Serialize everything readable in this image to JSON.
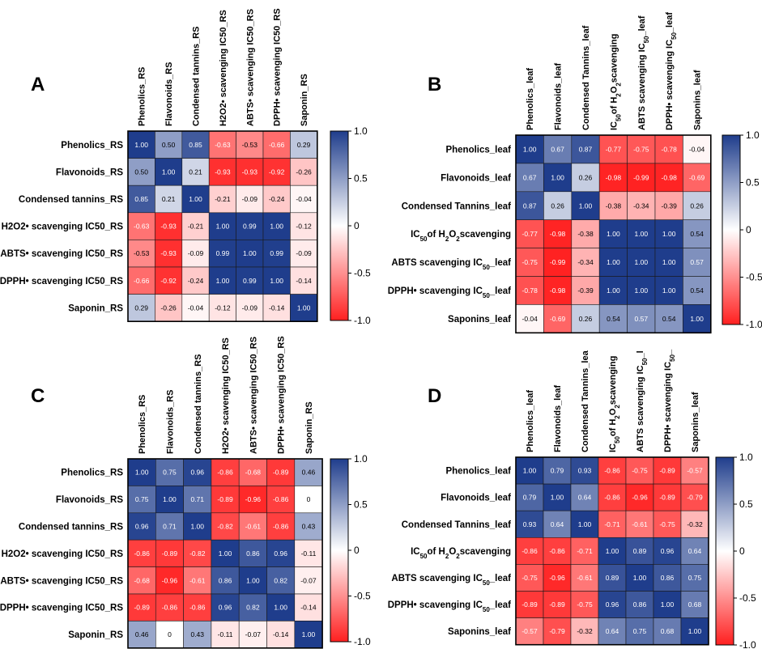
{
  "chart_data": [
    {
      "panel": "A",
      "type": "heatmap",
      "rows": [
        "Phenolics_RS",
        "Flavonoids_RS",
        "Condensed tannins_RS",
        "H2O2• scavenging IC50_RS",
        "ABTS• scavenging IC50_RS",
        "DPPH• scavenging IC50_RS",
        "Saponin_RS"
      ],
      "columns": [
        "Phenolics_RS",
        "Flavonoids_RS",
        "Condensed tannins_RS",
        "H2O2• scavenging IC50_RS",
        "ABTS• scavenging IC50_RS",
        "DPPH• scavenging IC50_RS",
        "Saponin_RS"
      ],
      "values": [
        [
          1.0,
          0.5,
          0.85,
          -0.63,
          -0.53,
          -0.66,
          0.29
        ],
        [
          0.5,
          1.0,
          0.21,
          -0.93,
          -0.93,
          -0.92,
          -0.26
        ],
        [
          0.85,
          0.21,
          1.0,
          -0.21,
          -0.09,
          -0.24,
          -0.04
        ],
        [
          -0.63,
          -0.93,
          -0.21,
          1.0,
          0.99,
          1.0,
          -0.12
        ],
        [
          -0.53,
          -0.93,
          -0.09,
          0.99,
          1.0,
          0.99,
          -0.09
        ],
        [
          -0.66,
          -0.92,
          -0.24,
          1.0,
          0.99,
          1.0,
          -0.14
        ],
        [
          0.29,
          -0.26,
          -0.04,
          -0.12,
          -0.09,
          -0.14,
          1.0
        ]
      ],
      "labels": [
        [
          "1.00",
          "0.50",
          "0.85",
          "-0.63",
          "-0.53",
          "-0.66",
          "0.29"
        ],
        [
          "0.50",
          "1.00",
          "0.21",
          "-0.93",
          "-0.93",
          "-0.92",
          "-0.26"
        ],
        [
          "0.85",
          "0.21",
          "1.00",
          "-0.21",
          "-0.09",
          "-0.24",
          "-0.04"
        ],
        [
          "-0.63",
          "-0.93",
          "-0.21",
          "1.00",
          "0.99",
          "1.00",
          "-0.12"
        ],
        [
          "-0.53",
          "-0.93",
          "-0.09",
          "0.99",
          "1.00",
          "0.99",
          "-0.09"
        ],
        [
          "-0.66",
          "-0.92",
          "-0.24",
          "1.00",
          "0.99",
          "1.00",
          "-0.14"
        ],
        [
          "0.29",
          "-0.26",
          "-0.04",
          "-0.12",
          "-0.09",
          "-0.14",
          "1.00"
        ]
      ],
      "colorbar": {
        "range": [
          -1.0,
          1.0
        ],
        "ticks": [
          "1.0",
          "0.5",
          "0",
          "-0.5",
          "-1.0"
        ]
      }
    },
    {
      "panel": "B",
      "type": "heatmap",
      "rows": [
        "Phenolics_leaf",
        "Flavonoids_leaf",
        "Condensed Tannins_leaf",
        "IC50of H2O2scavenging",
        "ABTS scavenging IC50_leaf",
        "DPPH• scavenging IC50_leaf",
        "Saponins_leaf"
      ],
      "columns": [
        "Phenolics_leaf",
        "Flavonoids_leaf",
        "Condensed Tannins_leaf",
        "IC50of H2O2scavenging",
        "ABTS scavenging IC50_leaf",
        "DPPH• scavenging IC50_leaf",
        "Saponins_leaf"
      ],
      "values": [
        [
          1.0,
          0.67,
          0.87,
          -0.77,
          -0.75,
          -0.78,
          -0.04
        ],
        [
          0.67,
          1.0,
          0.26,
          -0.98,
          -0.99,
          -0.98,
          -0.69
        ],
        [
          0.87,
          0.26,
          1.0,
          -0.38,
          -0.34,
          -0.39,
          0.26
        ],
        [
          -0.77,
          -0.98,
          -0.38,
          1.0,
          1.0,
          1.0,
          0.54
        ],
        [
          -0.75,
          -0.99,
          -0.34,
          1.0,
          1.0,
          1.0,
          0.57
        ],
        [
          -0.78,
          -0.98,
          -0.39,
          1.0,
          1.0,
          1.0,
          0.54
        ],
        [
          -0.04,
          -0.69,
          0.26,
          0.54,
          0.57,
          0.54,
          1.0
        ]
      ],
      "labels": [
        [
          "1.00",
          "0.67",
          "0.87",
          "-0.77",
          "-0.75",
          "-0.78",
          "-0.04"
        ],
        [
          "0.67",
          "1.00",
          "0.26",
          "-0.98",
          "-0.99",
          "-0.98",
          "-0.69"
        ],
        [
          "0.87",
          "0.26",
          "1.00",
          "-0.38",
          "-0.34",
          "-0.39",
          "0.26"
        ],
        [
          "-0.77",
          "-0.98",
          "-0.38",
          "1.00",
          "1.00",
          "1.00",
          "0.54"
        ],
        [
          "-0.75",
          "-0.99",
          "-0.34",
          "1.00",
          "1.00",
          "1.00",
          "0.57"
        ],
        [
          "-0.78",
          "-0.98",
          "-0.39",
          "1.00",
          "1.00",
          "1.00",
          "0.54"
        ],
        [
          "-0.04",
          "-0.69",
          "0.26",
          "0.54",
          "0.57",
          "0.54",
          "1.00"
        ]
      ],
      "colorbar": {
        "range": [
          -1.0,
          1.0
        ],
        "ticks": [
          "1.0",
          "0.5",
          "0",
          "-0.5",
          "-1.0"
        ]
      }
    },
    {
      "panel": "C",
      "type": "heatmap",
      "rows": [
        "Phenolics_RS",
        "Flavonoids_RS",
        "Condensed tannins_RS",
        "H2O2• scavenging IC50_RS",
        "ABTS• scavenging IC50_RS",
        "DPPH• scavenging IC50_RS",
        "Saponin_RS"
      ],
      "columns": [
        "Phenolics_RS",
        "Flavonoids_RS",
        "Condensed tannins_RS",
        "H2O2• scavenging IC50_RS",
        "ABTS• scavenging IC50_RS",
        "DPPH• scavenging IC50_RS",
        "Saponin_RS"
      ],
      "values": [
        [
          1.0,
          0.75,
          0.96,
          -0.86,
          -0.68,
          -0.89,
          0.46
        ],
        [
          0.75,
          1.0,
          0.71,
          -0.89,
          -0.96,
          -0.86,
          0
        ],
        [
          0.96,
          0.71,
          1.0,
          -0.82,
          -0.61,
          -0.86,
          0.43
        ],
        [
          -0.86,
          -0.89,
          -0.82,
          1.0,
          0.86,
          0.96,
          -0.11
        ],
        [
          -0.68,
          -0.96,
          -0.61,
          0.86,
          1.0,
          0.82,
          -0.07
        ],
        [
          -0.89,
          -0.86,
          -0.86,
          0.96,
          0.82,
          1.0,
          -0.14
        ],
        [
          0.46,
          0,
          0.43,
          -0.11,
          -0.07,
          -0.14,
          1.0
        ]
      ],
      "labels": [
        [
          "1.00",
          "0.75",
          "0.96",
          "-0.86",
          "-0.68",
          "-0.89",
          "0.46"
        ],
        [
          "0.75",
          "1.00",
          "0.71",
          "-0.89",
          "-0.96",
          "-0.86",
          "0"
        ],
        [
          "0.96",
          "0.71",
          "1.00",
          "-0.82",
          "-0.61",
          "-0.86",
          "0.43"
        ],
        [
          "-0.86",
          "-0.89",
          "-0.82",
          "1.00",
          "0.86",
          "0.96",
          "-0.11"
        ],
        [
          "-0.68",
          "-0.96",
          "-0.61",
          "0.86",
          "1.00",
          "0.82",
          "-0.07"
        ],
        [
          "-0.89",
          "-0.86",
          "-0.86",
          "0.96",
          "0.82",
          "1.00",
          "-0.14"
        ],
        [
          "0.46",
          "0",
          "0.43",
          "-0.11",
          "-0.07",
          "-0.14",
          "1.00"
        ]
      ],
      "colorbar": {
        "range": [
          -1.0,
          1.0
        ],
        "ticks": [
          "1.0",
          "0.5",
          "0",
          "-0.5",
          "-1.0"
        ]
      }
    },
    {
      "panel": "D",
      "type": "heatmap",
      "rows": [
        "Phenolics_leaf",
        "Flavonoids_leaf",
        "Condensed Tannins_leaf",
        "IC50of H2O2scavenging",
        "ABTS scavenging IC50_leaf",
        "DPPH• scavenging IC50_leaf",
        "Saponins_leaf"
      ],
      "columns": [
        "Phenolics_leaf",
        "Flavonoids_leaf",
        "Condensed Tannins_lea",
        "IC50of H2O2scavenging",
        "ABTS scavenging IC50_l",
        "DPPH• scavenging IC50_",
        "Saponins_leaf"
      ],
      "values": [
        [
          1.0,
          0.79,
          0.93,
          -0.86,
          -0.75,
          -0.89,
          -0.57
        ],
        [
          0.79,
          1.0,
          0.64,
          -0.86,
          -0.96,
          -0.89,
          -0.79
        ],
        [
          0.93,
          0.64,
          1.0,
          -0.71,
          -0.61,
          -0.75,
          -0.32
        ],
        [
          -0.86,
          -0.86,
          -0.71,
          1.0,
          0.89,
          0.96,
          0.64
        ],
        [
          -0.75,
          -0.96,
          -0.61,
          0.89,
          1.0,
          0.86,
          0.75
        ],
        [
          -0.89,
          -0.89,
          -0.75,
          0.96,
          0.86,
          1.0,
          0.68
        ],
        [
          -0.57,
          -0.79,
          -0.32,
          0.64,
          0.75,
          0.68,
          1.0
        ]
      ],
      "labels": [
        [
          "1.00",
          "0.79",
          "0.93",
          "-0.86",
          "-0.75",
          "-0.89",
          "-0.57"
        ],
        [
          "0.79",
          "1.00",
          "0.64",
          "-0.86",
          "-0.96",
          "-0.89",
          "-0.79"
        ],
        [
          "0.93",
          "0.64",
          "1.00",
          "-0.71",
          "-0.61",
          "-0.75",
          "-0.32"
        ],
        [
          "-0.86",
          "-0.86",
          "-0.71",
          "1.00",
          "0.89",
          "0.96",
          "0.64"
        ],
        [
          "-0.75",
          "-0.96",
          "-0.61",
          "0.89",
          "1.00",
          "0.86",
          "0.75"
        ],
        [
          "-0.89",
          "-0.89",
          "-0.75",
          "0.96",
          "0.86",
          "1.00",
          "0.68"
        ],
        [
          "-0.57",
          "-0.79",
          "-0.32",
          "0.64",
          "0.75",
          "0.68",
          "1.00"
        ]
      ],
      "colorbar": {
        "range": [
          -1.0,
          1.0
        ],
        "ticks": [
          "1.0",
          "0.5",
          "0",
          "-0.5",
          "-1.0"
        ]
      }
    }
  ],
  "colors": {
    "negative": "#ff2020",
    "zero": "#ffffff",
    "positive": "#1f3d8c"
  }
}
